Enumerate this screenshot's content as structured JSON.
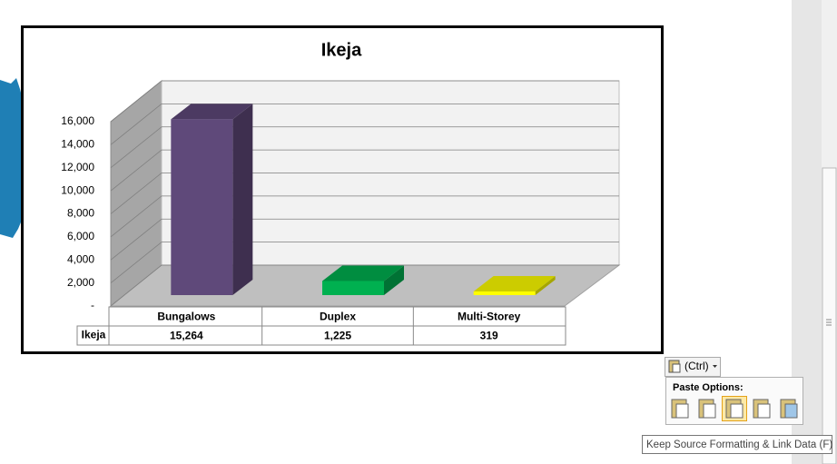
{
  "chart_data": {
    "type": "bar3d",
    "title": "Ikeja",
    "categories": [
      "Bungalows",
      "Duplex",
      "Multi-Storey"
    ],
    "series": [
      {
        "name": "Ikeja",
        "values": [
          15264,
          1225,
          319
        ],
        "value_labels": [
          "15,264",
          "1,225",
          "319"
        ],
        "colors": [
          "#5f497a",
          "#00b050",
          "#ffff00"
        ]
      }
    ],
    "ylim": [
      0,
      16000
    ],
    "yticks": [
      {
        "value": 0,
        "label": "-"
      },
      {
        "value": 2000,
        "label": "2,000"
      },
      {
        "value": 4000,
        "label": "4,000"
      },
      {
        "value": 6000,
        "label": "6,000"
      },
      {
        "value": 8000,
        "label": "8,000"
      },
      {
        "value": 10000,
        "label": "10,000"
      },
      {
        "value": 12000,
        "label": "12,000"
      },
      {
        "value": 14000,
        "label": "14,000"
      },
      {
        "value": 16000,
        "label": "16,000"
      }
    ],
    "grid": true,
    "data_table": true
  },
  "paste_menu": {
    "button": "(Ctrl)",
    "heading": "Paste Options:",
    "tooltip": "Keep Source Formatting & Link Data (F)"
  }
}
